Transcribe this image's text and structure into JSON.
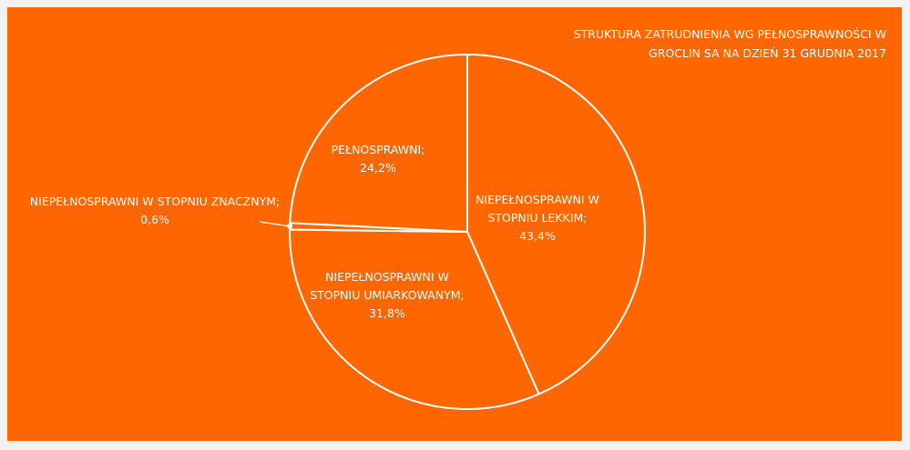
{
  "chart_data": {
    "type": "pie",
    "title": "STRUKTURA ZATRUDNIENIA WG PEŁNOSPRAWNOŚCI W GROCLIN SA NA DZIEŃ 31 GRUDNIA 2017",
    "categories": [
      "NIEPEŁNOSPRAWNI W STOPNIU LEKKIM;",
      "NIEPEŁNOSPRAWNI W STOPNIU UMIARKOWANYM;",
      "NIEPEŁNOSPRAWNI W STOPNIU ZNACZNYM;",
      "PEŁNOSPRAWNI;"
    ],
    "values": [
      43.4,
      31.8,
      0.6,
      24.2
    ],
    "value_labels": [
      "43,4%",
      "31,8%",
      "0,6%",
      "24,2%"
    ],
    "color": "#ff6600",
    "edge_color": "#ffffff"
  }
}
